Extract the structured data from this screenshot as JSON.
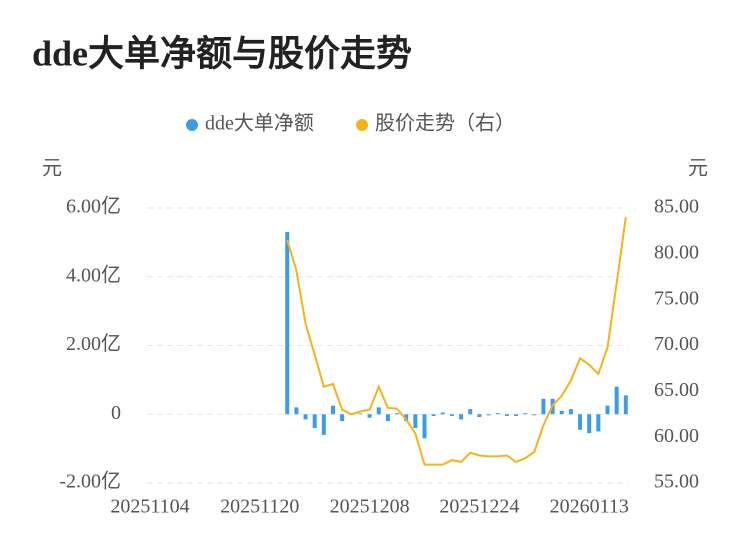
{
  "chart_data": {
    "type": "bar-line",
    "title": "dde大单净额与股价走势",
    "ylabel": "元",
    "y2label": "元",
    "categories": [
      "20251104",
      null,
      null,
      null,
      null,
      null,
      null,
      null,
      null,
      null,
      null,
      null,
      "20251120",
      null,
      null,
      null,
      null,
      null,
      null,
      null,
      null,
      null,
      null,
      null,
      "20251208",
      null,
      null,
      null,
      null,
      null,
      null,
      null,
      null,
      null,
      null,
      null,
      "20251224",
      null,
      null,
      null,
      null,
      null,
      null,
      null,
      null,
      null,
      null,
      null,
      "20260113",
      null,
      null,
      null,
      null
    ],
    "series": [
      {
        "name": "dde大单净额",
        "color": "#3a9de6",
        "type": "bar",
        "values": [
          null,
          null,
          null,
          null,
          null,
          null,
          null,
          null,
          null,
          null,
          null,
          null,
          null,
          null,
          null,
          5.3,
          0.2,
          -0.15,
          -0.4,
          -0.6,
          0.25,
          -0.2,
          0.02,
          0.02,
          -0.1,
          0.2,
          -0.2,
          0.03,
          -0.2,
          -0.4,
          -0.7,
          -0.05,
          0.05,
          -0.05,
          -0.15,
          0.15,
          -0.08,
          -0.03,
          0.03,
          -0.05,
          -0.05,
          0.03,
          -0.03,
          0.45,
          0.45,
          0.1,
          0.15,
          -0.45,
          -0.55,
          -0.5,
          0.25,
          0.8,
          0.55
        ]
      },
      {
        "name": "股价走势（右）",
        "color": "#f5b31b",
        "type": "line",
        "axis": "y2",
        "values": [
          null,
          null,
          null,
          null,
          null,
          null,
          null,
          null,
          null,
          null,
          null,
          null,
          null,
          null,
          null,
          81.5,
          78.2,
          72.4,
          69,
          65.5,
          65.8,
          63,
          62.5,
          62.8,
          63,
          65.5,
          63.2,
          63.1,
          61.9,
          60.4,
          57,
          57,
          57,
          57.5,
          57.3,
          58.3,
          58,
          57.9,
          57.9,
          58,
          57.3,
          57.7,
          58.4,
          61.3,
          63.5,
          64.5,
          66.2,
          68.6,
          67.9,
          66.9,
          69.8,
          76.8,
          84
        ]
      }
    ],
    "ylim": [
      -2,
      6
    ],
    "yticks": [
      {
        "value": -2,
        "label": "-2.00亿"
      },
      0,
      {
        "value": 2,
        "label": "2.00亿"
      },
      {
        "value": 4,
        "label": "4.00亿"
      },
      {
        "value": 6,
        "label": "6.00亿"
      }
    ],
    "y2lim": [
      55,
      85
    ],
    "y2ticks": [
      {
        "value": 55,
        "label": "55.00"
      },
      {
        "value": 60,
        "label": "60.00"
      },
      {
        "value": 65,
        "label": "65.00"
      },
      {
        "value": 70,
        "label": "70.00"
      },
      {
        "value": 75,
        "label": "75.00"
      },
      {
        "value": 80,
        "label": "80.00"
      },
      {
        "value": 85,
        "label": "85.00"
      }
    ],
    "grid": true,
    "legend": "top"
  }
}
